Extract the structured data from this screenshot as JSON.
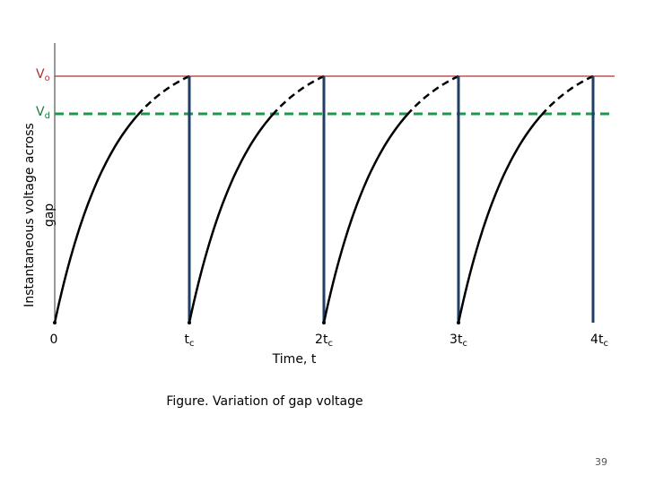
{
  "levels": [
    {
      "main": "V",
      "sub": "o"
    },
    {
      "main": "V",
      "sub": "d"
    }
  ],
  "y_axis_label": [
    "Instantaneous voltage across",
    "gap"
  ],
  "x_ticks": [
    {
      "main": "0"
    },
    {
      "main": "t",
      "sub": "c"
    },
    {
      "main": "2t",
      "sub": "c"
    },
    {
      "main": "3t",
      "sub": "c"
    },
    {
      "main": "4t",
      "sub": "c"
    }
  ],
  "x_axis_label": "Time, t",
  "caption": "Figure. Variation of gap voltage",
  "page_number": "39"
}
